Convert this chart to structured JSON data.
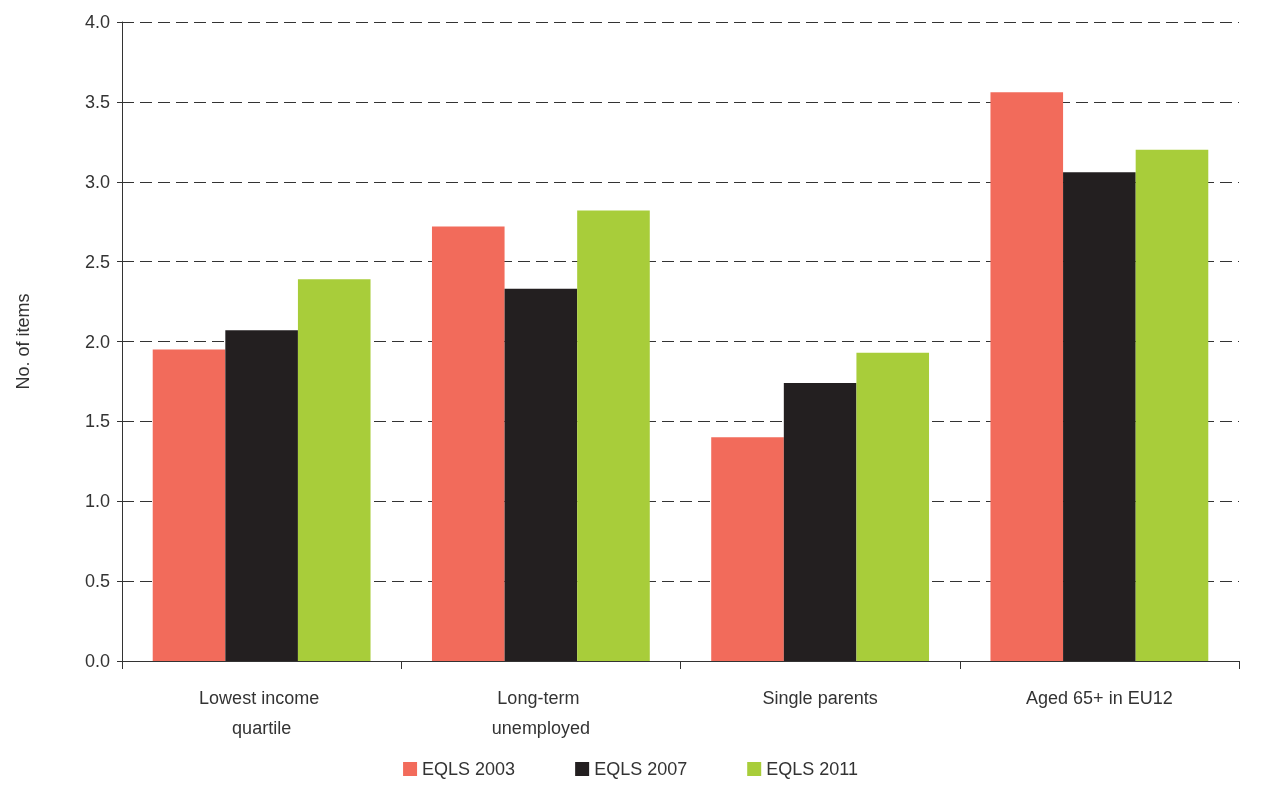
{
  "chart_data": {
    "type": "bar",
    "ylabel": "No. of items",
    "categories": [
      "Lowest income quartile",
      "Long-term unemployed",
      "Single parents",
      "Aged 65+ in EU12"
    ],
    "series": [
      {
        "name": "EQLS 2003",
        "color": "#f26b5b",
        "values": [
          1.95,
          2.72,
          1.4,
          3.56
        ]
      },
      {
        "name": "EQLS 2007",
        "color": "#231f20",
        "values": [
          2.07,
          2.33,
          1.74,
          3.06
        ]
      },
      {
        "name": "EQLS 2011",
        "color": "#a8cd3a",
        "values": [
          2.39,
          2.82,
          1.93,
          3.2
        ]
      }
    ],
    "ylim": [
      0,
      4
    ],
    "yticks": [
      {
        "value": 0,
        "label": "0.0"
      },
      0.5,
      {
        "value": 1,
        "label": "1.0"
      },
      1.5,
      {
        "value": 2,
        "label": "2.0"
      },
      2.5,
      {
        "value": 3,
        "label": "3.0"
      },
      3.5,
      {
        "value": 4,
        "label": "4.0"
      }
    ],
    "grid": "y",
    "legend": "bottom"
  }
}
